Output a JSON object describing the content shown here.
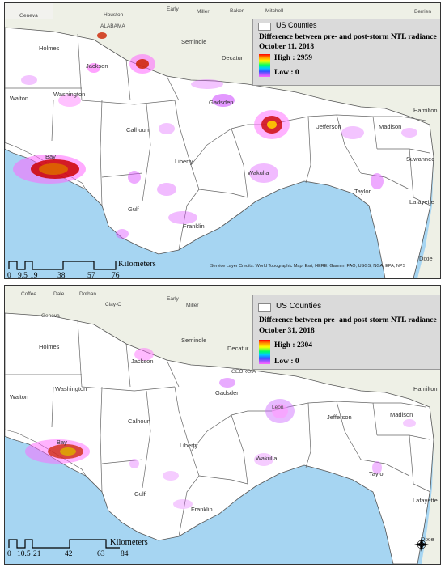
{
  "maps": [
    {
      "legend": {
        "layer_label": "US Counties",
        "title": "Difference between pre- and post-storm NTL radiance",
        "date": "October 11, 2018",
        "high_label": "High : 2959",
        "low_label": "Low : 0"
      },
      "scale": {
        "ticks": [
          "0",
          "9.5",
          "19",
          "38",
          "57",
          "76"
        ],
        "unit": "Kilometers"
      },
      "credits": "Service Layer Credits: World Topographic Map: Esri, HERE, Garmin, FAO, USGS, NGA, EPA, NPS",
      "places": {
        "geneva": "Geneva",
        "houston": "Houston",
        "early": "Early",
        "miller": "Miller",
        "baker": "Baker",
        "mitchell": "Mitchell",
        "berrien": "Berrien",
        "alabama": "ALABAMA",
        "seminole": "Seminole",
        "decatur": "Decatur",
        "holmes": "Holmes",
        "jackson": "Jackson",
        "walton": "Walton",
        "washington": "Washington",
        "gadsden": "Gadsden",
        "hamilton": "Hamilton",
        "calhoun": "Calhoun",
        "jefferson": "Jefferson",
        "madison": "Madison",
        "bay": "Bay",
        "suwannee": "Suwannee",
        "liberty": "Liberty",
        "wakulla": "Wakulla",
        "taylor": "Taylor",
        "lafayette": "Lafayette",
        "gulf": "Gulf",
        "franklin": "Franklin",
        "dixie": "Dixie"
      }
    },
    {
      "legend": {
        "layer_label": "US Counties",
        "title": "Difference between pre- and post-storm NTL radiance",
        "date": "October 31, 2018",
        "high_label": "High : 2304",
        "low_label": "Low : 0"
      },
      "scale": {
        "ticks": [
          "0",
          "10.5",
          "21",
          "42",
          "63",
          "84"
        ],
        "unit": "Kilometers"
      },
      "places": {
        "coffee": "Coffee",
        "dale": "Dale",
        "dothan": "Dothan",
        "early": "Early",
        "miller": "Miller",
        "geneva": "Geneva",
        "clay": "Clay-O",
        "seminole": "Seminole",
        "decatur": "Decatur",
        "georgia": "GEORGIA",
        "holmes": "Holmes",
        "jackson": "Jackson",
        "walton": "Walton",
        "washington": "Washington",
        "gadsden": "Gadsden",
        "leon": "Leon",
        "hamilton": "Hamilton",
        "calhoun": "Calhoun",
        "jefferson": "Jefferson",
        "madison": "Madison",
        "bay": "Bay",
        "liberty": "Liberty",
        "wakulla": "Wakulla",
        "taylor": "Taylor",
        "lafayette": "Lafayette",
        "gulf": "Gulf",
        "franklin": "Franklin",
        "dixie": "Dixie"
      }
    }
  ],
  "colors": {
    "water": "#a6d5f2",
    "land_outside": "#eef0e6",
    "county_fill": "#ffffff",
    "county_line": "#555555",
    "ntl_low": "#dd55ff",
    "ntl_high": "#ff0000"
  }
}
